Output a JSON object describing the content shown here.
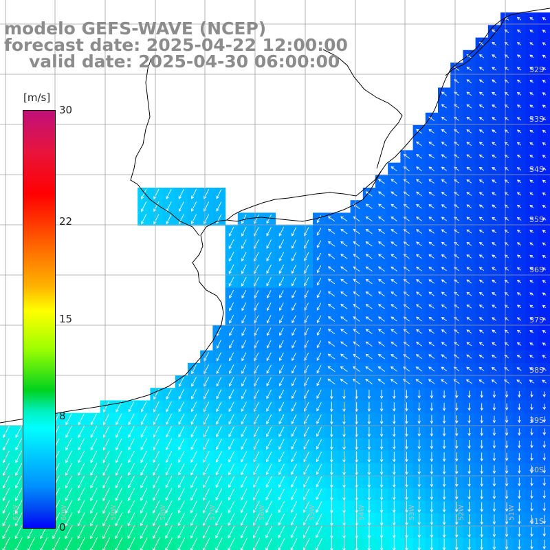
{
  "title": {
    "model": "modelo GEFS-WAVE (NCEP)",
    "forecast": "forecast date: 2025-04-22 12:00:00",
    "valid": "valid date: 2025-04-30 06:00:00"
  },
  "colorbar": {
    "unit": "[m/s]",
    "ticks": [
      {
        "label": "30",
        "value": 30
      },
      {
        "label": "22",
        "value": 22
      },
      {
        "label": "15",
        "value": 15
      },
      {
        "label": "8",
        "value": 8
      },
      {
        "label": "0",
        "value": 0
      }
    ]
  },
  "latitude_labels": [
    "32S",
    "33S",
    "34S",
    "35S",
    "36S",
    "37S",
    "38S",
    "39S",
    "40S",
    "41S"
  ],
  "longitude_labels": [
    "61W",
    "60W",
    "59W",
    "58W",
    "57W",
    "56W",
    "55W",
    "54W",
    "53W",
    "52W",
    "51W"
  ],
  "colors": {
    "land": "#ffffff",
    "grid": "#a0a0a0",
    "coast": "#000000",
    "arrow": "#ffffff",
    "title": "#8c8c8c"
  },
  "field": {
    "variable": "wind speed",
    "lat_range": [
      "31S",
      "42S"
    ],
    "lon_range": [
      "62W",
      "51W"
    ]
  }
}
